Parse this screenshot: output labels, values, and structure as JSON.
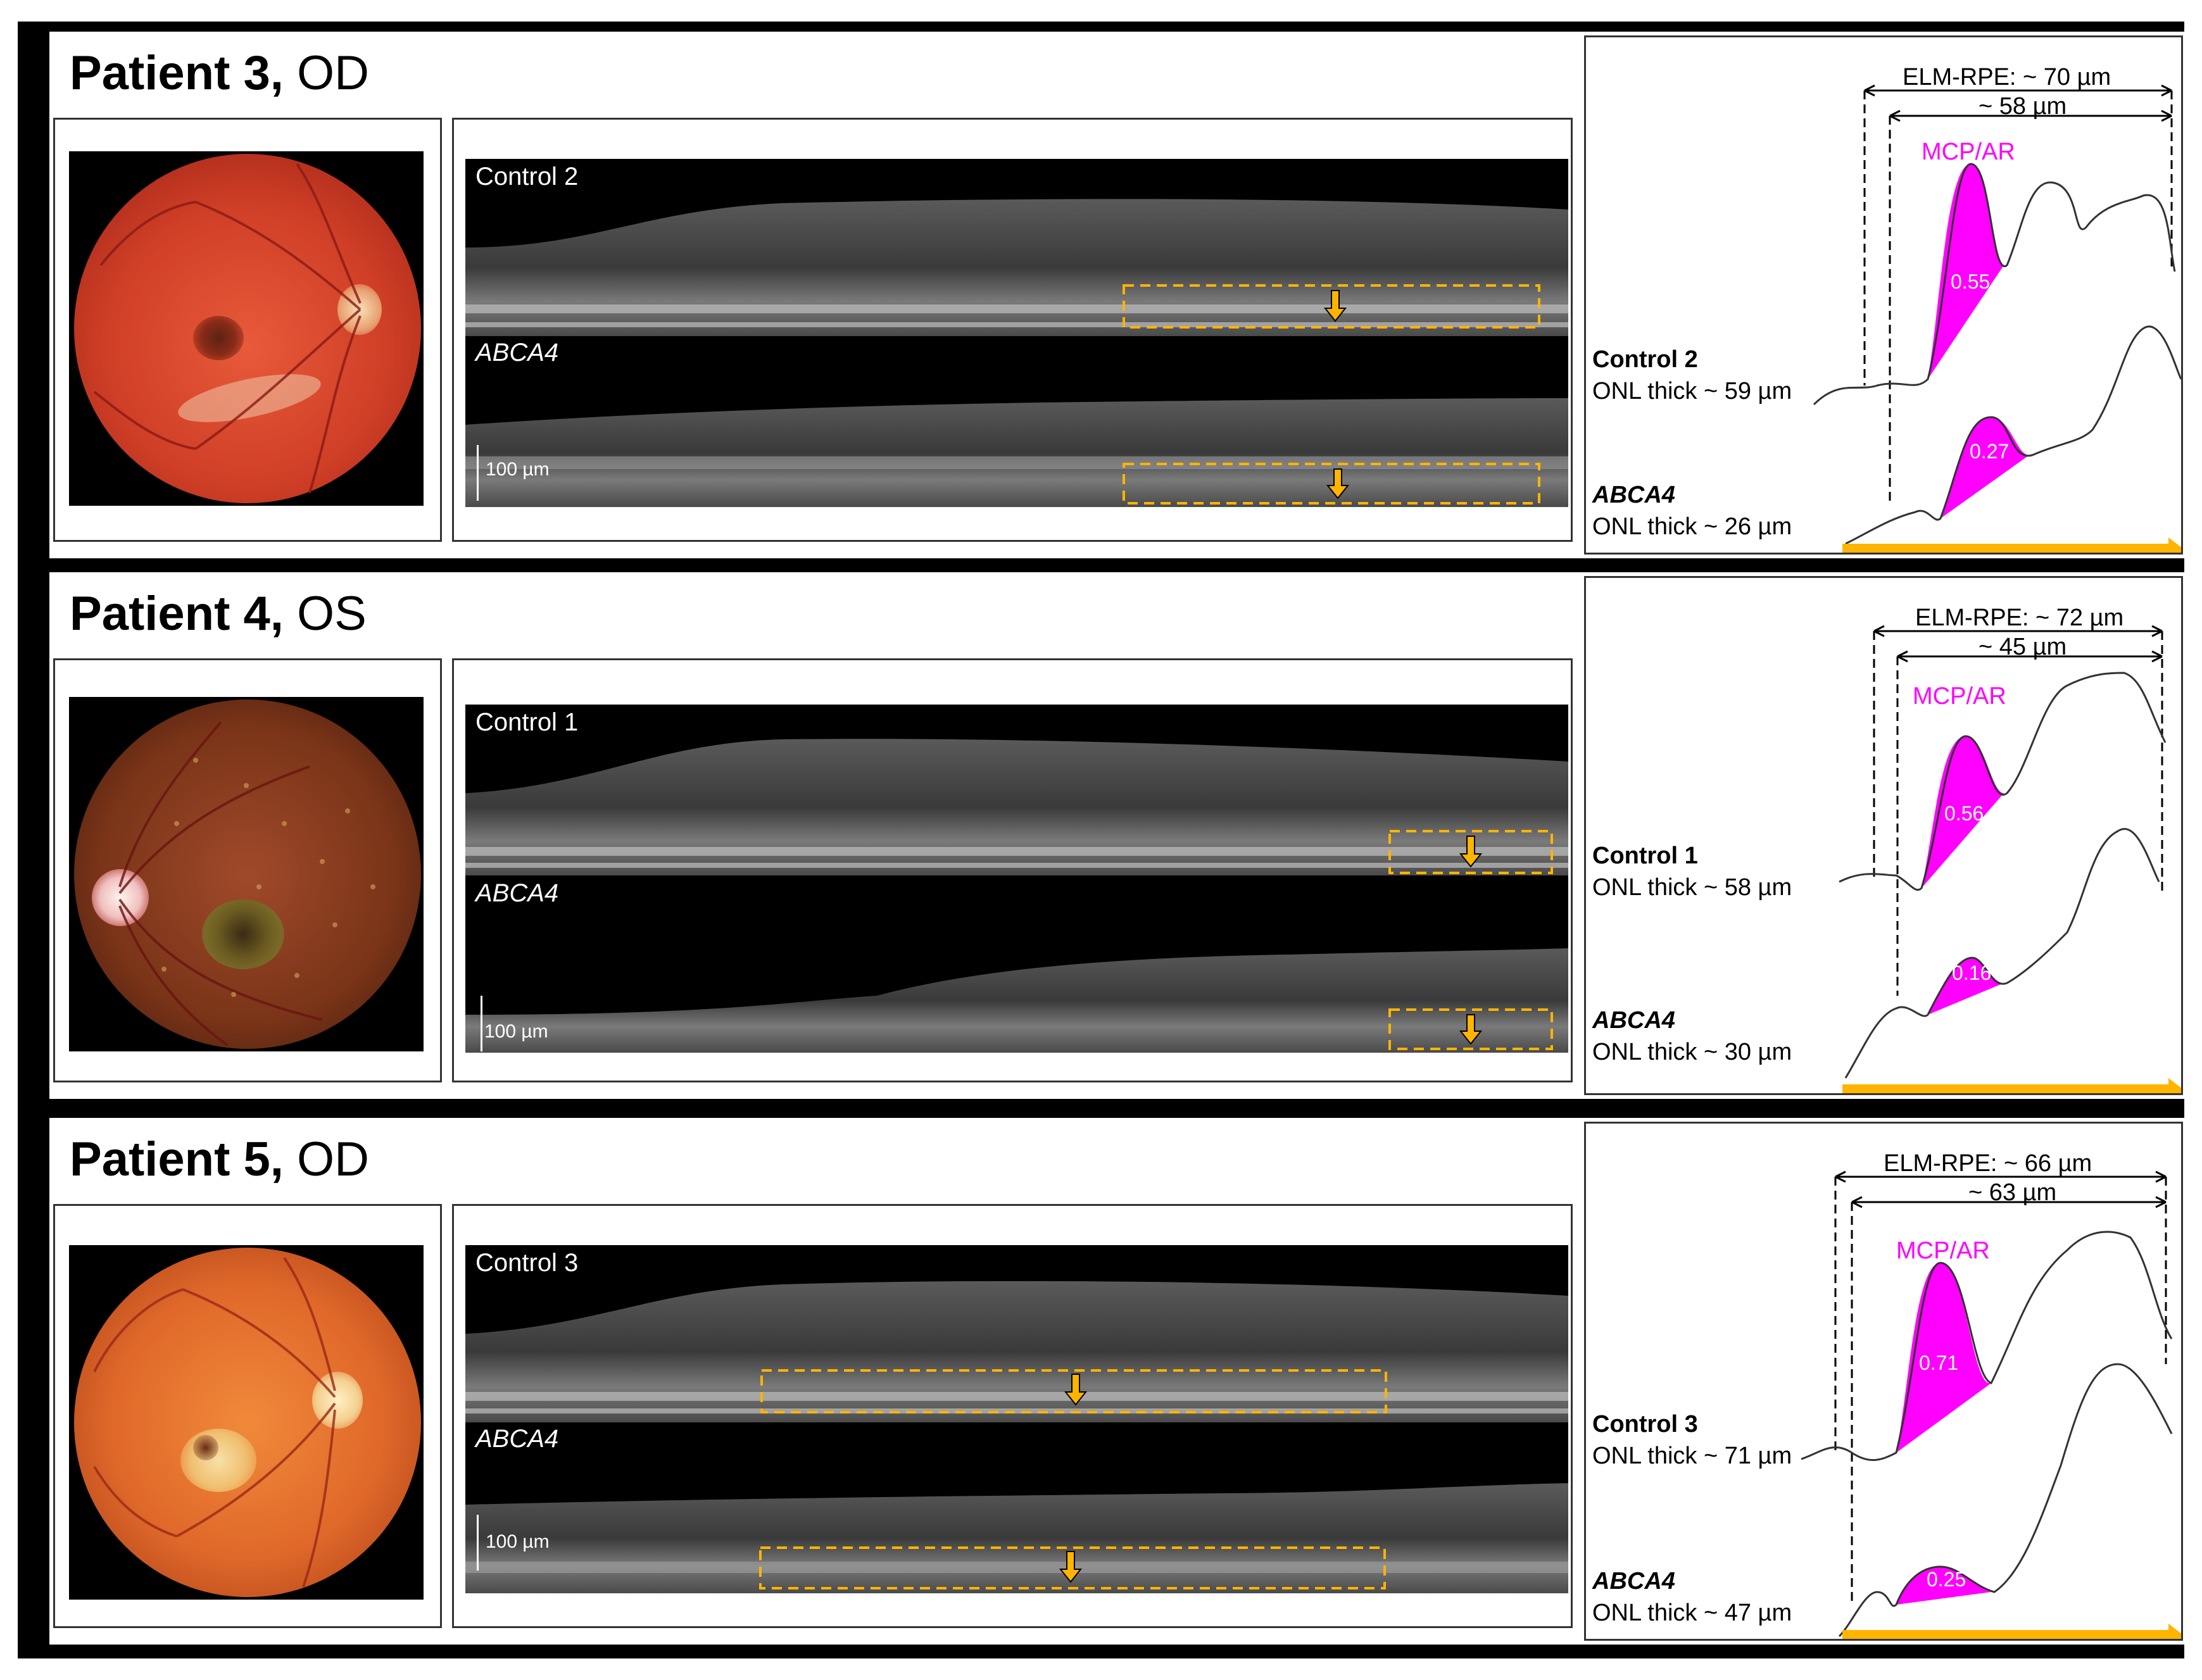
{
  "unit": "µm",
  "panels": [
    {
      "patient": "Patient 3,",
      "eye": "OD",
      "oct_top_label": "Control 2",
      "oct_bottom_label": "ABCA4",
      "scale_label": "100 µm",
      "elm_rpe": "ELM-RPE: ~ 70 µm",
      "inner_measure": "~ 58 µm",
      "mcp_label": "MCP/AR",
      "control_value": "0.55",
      "abca4_value": "0.27",
      "control_name": "Control 2",
      "control_onl": "ONL thick ~ 59 µm",
      "abca4_name": "ABCA4",
      "abca4_onl": "ONL thick ~ 26 µm"
    },
    {
      "patient": "Patient 4,",
      "eye": "OS",
      "oct_top_label": "Control 1",
      "oct_bottom_label": "ABCA4",
      "scale_label": "100 µm",
      "elm_rpe": "ELM-RPE: ~ 72 µm",
      "inner_measure": "~ 45 µm",
      "mcp_label": "MCP/AR",
      "control_value": "0.56",
      "abca4_value": "0.16",
      "control_name": "Control 1",
      "control_onl": "ONL thick ~ 58 µm",
      "abca4_name": "ABCA4",
      "abca4_onl": "ONL thick ~ 30 µm"
    },
    {
      "patient": "Patient 5,",
      "eye": "OD",
      "oct_top_label": "Control 3",
      "oct_bottom_label": "ABCA4",
      "scale_label": "100 µm",
      "elm_rpe": "ELM-RPE: ~ 66 µm",
      "inner_measure": "~ 63 µm",
      "mcp_label": "MCP/AR",
      "control_value": "0.71",
      "abca4_value": "0.25",
      "control_name": "Control 3",
      "control_onl": "ONL thick ~ 71 µm",
      "abca4_name": "ABCA4",
      "abca4_onl": "ONL thick ~ 47 µm"
    }
  ],
  "colors": {
    "magenta": "#ff00ff",
    "orange": "#ffb400",
    "fundus_red": "#d8432a",
    "fundus_dark": "#6a3a1c",
    "fundus_orange": "#e8702c"
  }
}
